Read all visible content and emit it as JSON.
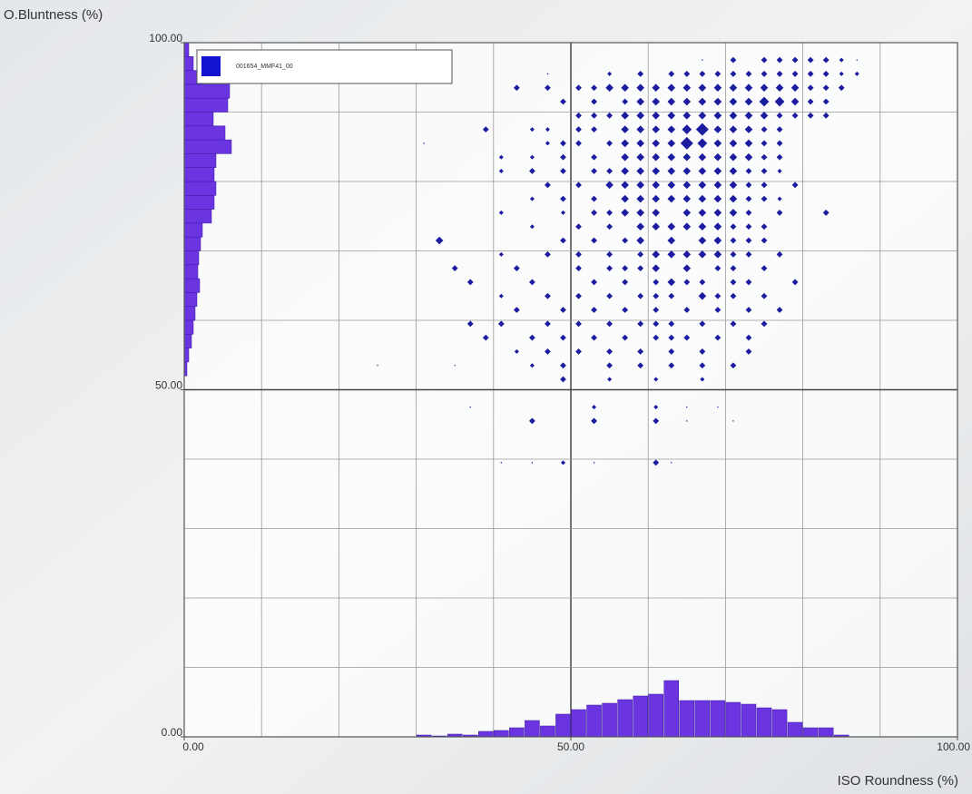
{
  "chart_data": {
    "type": "scatter",
    "xlabel": "ISO Roundness (%)",
    "ylabel": "O.Bluntness (%)",
    "xlim": [
      0,
      100
    ],
    "ylim": [
      0,
      100
    ],
    "xticks": [
      {
        "value": 0,
        "label": "0.00"
      },
      {
        "value": 50,
        "label": "50.00"
      },
      {
        "value": 100,
        "label": "100.00"
      }
    ],
    "yticks": [
      {
        "value": 0,
        "label": "0.00"
      },
      {
        "value": 50,
        "label": "50.00"
      },
      {
        "value": 100,
        "label": "100.00"
      }
    ],
    "xgrid": [
      10,
      20,
      30,
      40,
      50,
      60,
      70,
      80,
      90
    ],
    "ygrid": [
      10,
      20,
      30,
      40,
      50,
      60,
      70,
      80,
      90
    ],
    "legend": "top-left",
    "series": [
      {
        "name": "001654_MMF41_00",
        "color": "#1c1ca0",
        "x": [
          67,
          71,
          75,
          77,
          79,
          81,
          83,
          85,
          87,
          47,
          55,
          59,
          63,
          65,
          67,
          69,
          71,
          73,
          75,
          77,
          79,
          81,
          83,
          85,
          87,
          43,
          47,
          51,
          53,
          55,
          57,
          59,
          61,
          63,
          65,
          67,
          69,
          71,
          73,
          75,
          77,
          79,
          81,
          83,
          85,
          49,
          53,
          57,
          59,
          61,
          63,
          65,
          67,
          69,
          71,
          73,
          75,
          77,
          79,
          81,
          83,
          51,
          53,
          55,
          57,
          59,
          61,
          63,
          65,
          67,
          69,
          71,
          73,
          75,
          77,
          79,
          81,
          83,
          39,
          45,
          47,
          51,
          53,
          57,
          59,
          61,
          63,
          65,
          67,
          69,
          71,
          73,
          75,
          77,
          31,
          47,
          49,
          51,
          55,
          57,
          59,
          61,
          63,
          65,
          67,
          69,
          71,
          73,
          75,
          77,
          41,
          45,
          49,
          53,
          57,
          59,
          61,
          63,
          65,
          67,
          69,
          71,
          73,
          75,
          77,
          41,
          45,
          49,
          53,
          55,
          57,
          59,
          61,
          63,
          65,
          67,
          69,
          71,
          73,
          75,
          77,
          47,
          51,
          55,
          57,
          59,
          61,
          63,
          65,
          67,
          69,
          71,
          73,
          75,
          79,
          45,
          49,
          53,
          57,
          59,
          61,
          63,
          65,
          67,
          69,
          71,
          73,
          75,
          77,
          41,
          49,
          53,
          55,
          57,
          59,
          61,
          65,
          67,
          69,
          71,
          73,
          77,
          83,
          45,
          51,
          55,
          59,
          61,
          63,
          65,
          67,
          69,
          71,
          73,
          75,
          33,
          49,
          53,
          57,
          59,
          63,
          67,
          69,
          71,
          73,
          75,
          41,
          47,
          51,
          55,
          59,
          61,
          63,
          65,
          67,
          69,
          71,
          73,
          77,
          35,
          43,
          51,
          55,
          57,
          59,
          61,
          65,
          69,
          71,
          75,
          37,
          45,
          53,
          57,
          61,
          63,
          65,
          67,
          71,
          73,
          79,
          41,
          47,
          51,
          55,
          59,
          61,
          63,
          67,
          69,
          71,
          75,
          43,
          49,
          53,
          57,
          61,
          65,
          69,
          73,
          77,
          37,
          41,
          47,
          51,
          55,
          59,
          61,
          63,
          67,
          71,
          75,
          39,
          45,
          49,
          53,
          57,
          61,
          63,
          65,
          69,
          73,
          43,
          47,
          51,
          55,
          59,
          63,
          67,
          73,
          25,
          35,
          45,
          49,
          55,
          59,
          63,
          67,
          71,
          49,
          55,
          61,
          67,
          37,
          53,
          61,
          65,
          69,
          45,
          53,
          61,
          65,
          71,
          41,
          45,
          49,
          53,
          61,
          63
        ],
        "values": [
          97.5,
          97.5,
          97.5,
          97.5,
          97.5,
          97.5,
          97.5,
          97.5,
          97.5,
          95.5,
          95.5,
          95.5,
          95.5,
          95.5,
          95.5,
          95.5,
          95.5,
          95.5,
          95.5,
          95.5,
          95.5,
          95.5,
          95.5,
          95.5,
          95.5,
          93.5,
          93.5,
          93.5,
          93.5,
          93.5,
          93.5,
          93.5,
          93.5,
          93.5,
          93.5,
          93.5,
          93.5,
          93.5,
          93.5,
          93.5,
          93.5,
          93.5,
          93.5,
          93.5,
          93.5,
          91.5,
          91.5,
          91.5,
          91.5,
          91.5,
          91.5,
          91.5,
          91.5,
          91.5,
          91.5,
          91.5,
          91.5,
          91.5,
          91.5,
          91.5,
          91.5,
          89.5,
          89.5,
          89.5,
          89.5,
          89.5,
          89.5,
          89.5,
          89.5,
          89.5,
          89.5,
          89.5,
          89.5,
          89.5,
          89.5,
          89.5,
          89.5,
          89.5,
          87.5,
          87.5,
          87.5,
          87.5,
          87.5,
          87.5,
          87.5,
          87.5,
          87.5,
          87.5,
          87.5,
          87.5,
          87.5,
          87.5,
          87.5,
          87.5,
          85.5,
          85.5,
          85.5,
          85.5,
          85.5,
          85.5,
          85.5,
          85.5,
          85.5,
          85.5,
          85.5,
          85.5,
          85.5,
          85.5,
          85.5,
          85.5,
          83.5,
          83.5,
          83.5,
          83.5,
          83.5,
          83.5,
          83.5,
          83.5,
          83.5,
          83.5,
          83.5,
          83.5,
          83.5,
          83.5,
          83.5,
          81.5,
          81.5,
          81.5,
          81.5,
          81.5,
          81.5,
          81.5,
          81.5,
          81.5,
          81.5,
          81.5,
          81.5,
          81.5,
          81.5,
          81.5,
          81.5,
          79.5,
          79.5,
          79.5,
          79.5,
          79.5,
          79.5,
          79.5,
          79.5,
          79.5,
          79.5,
          79.5,
          79.5,
          79.5,
          79.5,
          77.5,
          77.5,
          77.5,
          77.5,
          77.5,
          77.5,
          77.5,
          77.5,
          77.5,
          77.5,
          77.5,
          77.5,
          77.5,
          77.5,
          75.5,
          75.5,
          75.5,
          75.5,
          75.5,
          75.5,
          75.5,
          75.5,
          75.5,
          75.5,
          75.5,
          75.5,
          75.5,
          75.5,
          73.5,
          73.5,
          73.5,
          73.5,
          73.5,
          73.5,
          73.5,
          73.5,
          73.5,
          73.5,
          73.5,
          73.5,
          71.5,
          71.5,
          71.5,
          71.5,
          71.5,
          71.5,
          71.5,
          71.5,
          71.5,
          71.5,
          71.5,
          69.5,
          69.5,
          69.5,
          69.5,
          69.5,
          69.5,
          69.5,
          69.5,
          69.5,
          69.5,
          69.5,
          69.5,
          69.5,
          67.5,
          67.5,
          67.5,
          67.5,
          67.5,
          67.5,
          67.5,
          67.5,
          67.5,
          67.5,
          67.5,
          65.5,
          65.5,
          65.5,
          65.5,
          65.5,
          65.5,
          65.5,
          65.5,
          65.5,
          65.5,
          65.5,
          63.5,
          63.5,
          63.5,
          63.5,
          63.5,
          63.5,
          63.5,
          63.5,
          63.5,
          63.5,
          63.5,
          61.5,
          61.5,
          61.5,
          61.5,
          61.5,
          61.5,
          61.5,
          61.5,
          61.5,
          59.5,
          59.5,
          59.5,
          59.5,
          59.5,
          59.5,
          59.5,
          59.5,
          59.5,
          59.5,
          59.5,
          57.5,
          57.5,
          57.5,
          57.5,
          57.5,
          57.5,
          57.5,
          57.5,
          57.5,
          57.5,
          55.5,
          55.5,
          55.5,
          55.5,
          55.5,
          55.5,
          55.5,
          55.5,
          53.5,
          53.5,
          53.5,
          53.5,
          53.5,
          53.5,
          53.5,
          53.5,
          53.5,
          51.5,
          51.5,
          51.5,
          51.5,
          47.5,
          47.5,
          47.5,
          47.5,
          47.5,
          45.5,
          45.5,
          45.5,
          45.5,
          45.5,
          39.5,
          39.5,
          39.5,
          39.5,
          39.5,
          39.5
        ],
        "sizes": [
          1,
          3,
          3,
          3,
          3,
          3,
          3,
          2,
          1,
          1,
          2,
          3,
          3,
          3,
          3,
          3,
          3,
          3,
          3,
          3,
          3,
          3,
          3,
          2,
          2,
          3,
          3,
          3,
          3,
          4,
          4,
          4,
          4,
          4,
          4,
          4,
          4,
          4,
          4,
          4,
          4,
          4,
          3,
          3,
          3,
          3,
          3,
          3,
          4,
          4,
          4,
          4,
          4,
          4,
          4,
          4,
          5,
          5,
          4,
          3,
          3,
          3,
          3,
          3,
          4,
          4,
          4,
          4,
          4,
          4,
          4,
          4,
          4,
          4,
          3,
          3,
          3,
          3,
          3,
          2,
          2,
          3,
          3,
          4,
          4,
          4,
          4,
          5,
          6,
          4,
          4,
          4,
          3,
          3,
          1,
          2,
          3,
          3,
          3,
          4,
          4,
          4,
          4,
          6,
          5,
          4,
          4,
          4,
          3,
          3,
          2,
          2,
          3,
          3,
          4,
          4,
          4,
          4,
          4,
          4,
          4,
          4,
          4,
          3,
          3,
          2,
          3,
          3,
          3,
          3,
          4,
          4,
          4,
          4,
          4,
          4,
          4,
          4,
          3,
          3,
          2,
          3,
          3,
          4,
          4,
          4,
          4,
          4,
          4,
          4,
          4,
          4,
          3,
          3,
          3,
          2,
          3,
          3,
          4,
          4,
          4,
          4,
          4,
          4,
          4,
          4,
          3,
          3,
          2,
          2,
          2,
          3,
          3,
          4,
          4,
          4,
          4,
          4,
          4,
          4,
          3,
          3,
          3,
          2,
          3,
          3,
          4,
          4,
          4,
          4,
          4,
          4,
          3,
          3,
          3,
          4,
          3,
          3,
          3,
          4,
          4,
          4,
          4,
          3,
          3,
          3,
          2,
          3,
          3,
          3,
          3,
          4,
          4,
          4,
          4,
          4,
          3,
          3,
          3,
          3,
          3,
          3,
          3,
          3,
          3,
          4,
          4,
          3,
          3,
          3,
          3,
          3,
          3,
          3,
          3,
          4,
          3,
          3,
          3,
          3,
          3,
          2,
          3,
          3,
          3,
          3,
          3,
          3,
          4,
          3,
          3,
          3,
          3,
          3,
          3,
          3,
          3,
          3,
          3,
          3,
          3,
          3,
          3,
          3,
          3,
          3,
          3,
          3,
          3,
          3,
          3,
          3,
          3,
          3,
          3,
          3,
          3,
          3,
          3,
          3,
          3,
          3,
          2,
          3,
          3,
          3,
          3,
          3,
          3,
          3,
          1,
          1,
          2,
          3,
          3,
          3,
          3,
          3,
          3,
          3,
          2,
          2,
          2,
          1,
          2,
          2,
          1,
          1,
          3,
          3,
          3,
          1,
          1,
          1,
          1,
          2,
          1,
          3,
          1
        ]
      }
    ],
    "x_histogram": {
      "color": "#6a34e0",
      "bins": [
        30,
        32,
        34,
        36,
        38,
        40,
        42,
        44,
        46,
        48,
        50,
        52,
        54,
        56,
        58,
        60,
        62,
        64,
        66,
        68,
        70,
        72,
        74,
        76,
        78,
        80,
        82,
        84,
        86
      ],
      "counts": [
        2,
        1,
        3,
        2,
        6,
        7,
        10,
        18,
        12,
        25,
        30,
        35,
        37,
        41,
        45,
        47,
        62,
        40,
        40,
        40,
        38,
        36,
        32,
        30,
        16,
        10,
        10,
        2
      ]
    },
    "y_histogram": {
      "color": "#6a34e0",
      "bins": [
        52,
        54,
        56,
        58,
        60,
        62,
        64,
        66,
        68,
        70,
        72,
        74,
        76,
        78,
        80,
        82,
        84,
        86,
        88,
        90,
        92,
        94,
        96,
        98,
        100
      ],
      "counts": [
        3,
        5,
        8,
        10,
        12,
        14,
        17,
        15,
        16,
        18,
        20,
        30,
        33,
        35,
        33,
        35,
        52,
        45,
        32,
        48,
        50,
        20,
        10,
        5
      ]
    }
  }
}
